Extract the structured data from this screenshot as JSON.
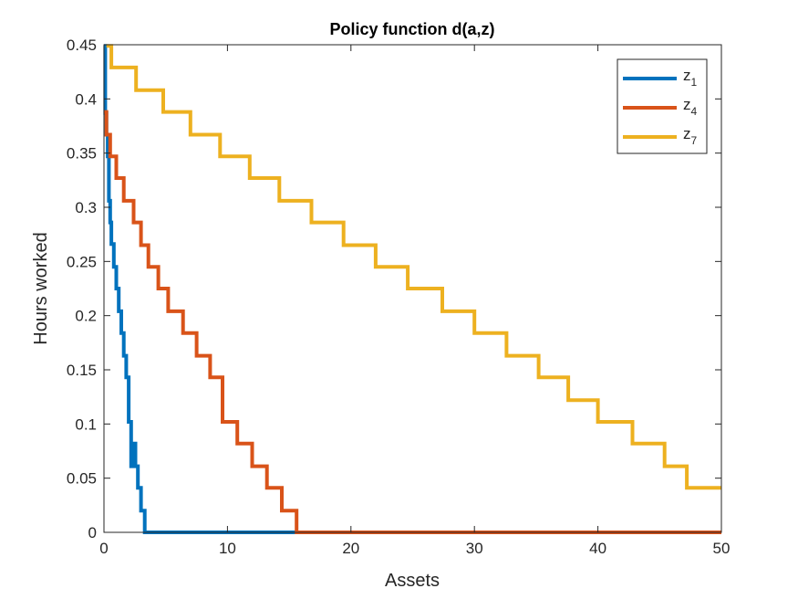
{
  "chart_data": {
    "type": "line",
    "title": "Policy function d(a,z)",
    "xlabel": "Assets",
    "ylabel": "Hours worked",
    "xlim": [
      0,
      50
    ],
    "ylim": [
      0,
      0.45
    ],
    "xticks": [
      0,
      10,
      20,
      30,
      40,
      50
    ],
    "xtick_labels": [
      "0",
      "10",
      "20",
      "30",
      "40",
      "50"
    ],
    "yticks": [
      0,
      0.05,
      0.1,
      0.15,
      0.2,
      0.25,
      0.3,
      0.35,
      0.4,
      0.45
    ],
    "ytick_labels": [
      "0",
      "0.05",
      "0.1",
      "0.15",
      "0.2",
      "0.25",
      "0.3",
      "0.35",
      "0.4",
      "0.45"
    ],
    "legend_position": "top-right",
    "series": [
      {
        "name": "z",
        "subscript": "1",
        "color": "#0072BD",
        "x": [
          0,
          0.1,
          0.1,
          0.2,
          0.2,
          0.3,
          0.3,
          0.4,
          0.4,
          0.5,
          0.5,
          0.6,
          0.6,
          0.8,
          0.8,
          1.0,
          1.0,
          1.2,
          1.2,
          1.4,
          1.4,
          1.6,
          1.6,
          1.8,
          1.8,
          2.0,
          2.0,
          2.2,
          2.2,
          2.35,
          2.35,
          2.55,
          2.55,
          2.75,
          2.75,
          3.0,
          3.0,
          3.3,
          3.3,
          50
        ],
        "y": [
          0.449,
          0.449,
          0.387,
          0.387,
          0.367,
          0.367,
          0.347,
          0.347,
          0.306,
          0.306,
          0.286,
          0.286,
          0.266,
          0.266,
          0.245,
          0.245,
          0.225,
          0.225,
          0.204,
          0.204,
          0.184,
          0.184,
          0.163,
          0.163,
          0.143,
          0.143,
          0.102,
          0.102,
          0.061,
          0.061,
          0.082,
          0.082,
          0.061,
          0.061,
          0.041,
          0.041,
          0.02,
          0.02,
          0.0,
          0.0
        ]
      },
      {
        "name": "z",
        "subscript": "4",
        "color": "#D95319",
        "x": [
          0,
          0.2,
          0.2,
          0.5,
          0.5,
          1.0,
          1.0,
          1.6,
          1.6,
          2.4,
          2.4,
          3.0,
          3.0,
          3.6,
          3.6,
          4.4,
          4.4,
          5.2,
          5.2,
          6.4,
          6.4,
          7.5,
          7.5,
          8.6,
          8.6,
          9.6,
          9.6,
          10.8,
          10.8,
          12.0,
          12.0,
          13.2,
          13.2,
          14.4,
          14.4,
          15.6,
          15.6,
          50
        ],
        "y": [
          0.388,
          0.388,
          0.367,
          0.367,
          0.347,
          0.347,
          0.327,
          0.327,
          0.306,
          0.306,
          0.286,
          0.286,
          0.265,
          0.265,
          0.245,
          0.245,
          0.225,
          0.225,
          0.204,
          0.204,
          0.184,
          0.184,
          0.163,
          0.163,
          0.143,
          0.143,
          0.102,
          0.102,
          0.082,
          0.082,
          0.061,
          0.061,
          0.041,
          0.041,
          0.02,
          0.02,
          0.0,
          0.0
        ]
      },
      {
        "name": "z",
        "subscript": "7",
        "color": "#EDB120",
        "x": [
          0.2,
          0.6,
          0.6,
          2.6,
          2.6,
          4.8,
          4.8,
          7.0,
          7.0,
          9.4,
          9.4,
          11.8,
          11.8,
          14.2,
          14.2,
          16.8,
          16.8,
          19.4,
          19.4,
          22.0,
          22.0,
          24.6,
          24.6,
          27.4,
          27.4,
          30.0,
          30.0,
          32.6,
          32.6,
          35.2,
          35.2,
          37.6,
          37.6,
          40.0,
          40.0,
          42.8,
          42.8,
          45.4,
          45.4,
          47.2,
          47.2,
          50.0
        ],
        "y": [
          0.449,
          0.449,
          0.429,
          0.429,
          0.408,
          0.408,
          0.388,
          0.388,
          0.367,
          0.367,
          0.347,
          0.347,
          0.327,
          0.327,
          0.306,
          0.306,
          0.286,
          0.286,
          0.265,
          0.265,
          0.245,
          0.245,
          0.225,
          0.225,
          0.204,
          0.204,
          0.184,
          0.184,
          0.163,
          0.163,
          0.143,
          0.143,
          0.122,
          0.122,
          0.102,
          0.102,
          0.082,
          0.082,
          0.061,
          0.061,
          0.041,
          0.041
        ]
      }
    ]
  }
}
